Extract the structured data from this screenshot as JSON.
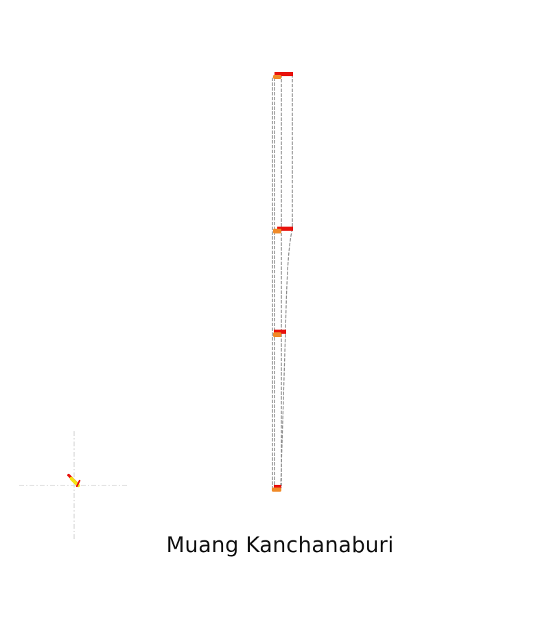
{
  "location": {
    "name": "Muang Kanchanaburi"
  },
  "colors": {
    "background": "#ffffff",
    "dashed_line": "#8a8a8a",
    "crosshair": "#d0d0d0",
    "marker_red": "#e8120c",
    "marker_orange": "#f08a28",
    "marker_yellow": "#f5e313"
  },
  "icons": {
    "compass": "compass-arrow-icon"
  }
}
